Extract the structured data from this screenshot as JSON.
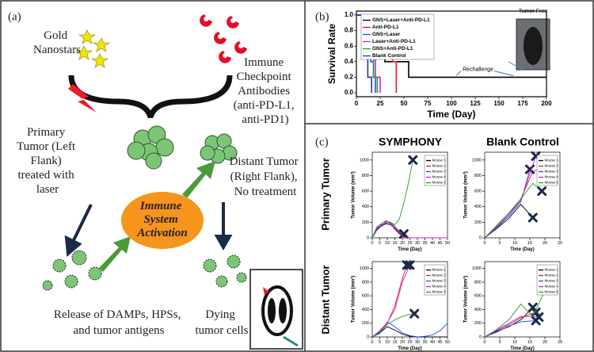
{
  "panel_labels": [
    "(a)",
    "(b)",
    "(c)"
  ],
  "diagram": {
    "gold": {
      "lines": [
        "Gold",
        "Nanostars"
      ]
    },
    "antibodies": {
      "lines": [
        "Immune",
        "Checkpoint",
        "Antibodies",
        "(anti-PD-L1,",
        "anti-PD1)"
      ]
    },
    "primary": {
      "lines": [
        "Primary",
        "Tumor (Left",
        "Flank)",
        "treated with",
        "laser"
      ]
    },
    "activation": {
      "lines": [
        "Immune",
        "System",
        "Activation"
      ]
    },
    "distant": {
      "lines": [
        "Distant Tumor",
        "(Right Flank),",
        "No treatment"
      ]
    },
    "release": {
      "lines": [
        "Release of DAMPs, HPSs,",
        "and tumor antigens"
      ]
    },
    "dying": {
      "lines": [
        "Dying",
        "tumor cells"
      ]
    }
  },
  "panel_c": {
    "columns": [
      "SYMPHONY",
      "Blank Control"
    ],
    "rows": [
      "Primary Tumor",
      "Distant Tumor"
    ]
  },
  "chart_data": [
    {
      "type": "line",
      "xlabel": "Time (Day)",
      "ylabel": "Survival Rate",
      "xlim": [
        0,
        200
      ],
      "ylim": [
        -0.05,
        1.05
      ],
      "xticks": [
        0,
        25,
        50,
        75,
        100,
        125,
        150,
        175,
        200
      ],
      "yticks": [
        {
          "value": 0,
          "label": "0.0"
        },
        {
          "value": 0.2,
          "label": "0.2"
        },
        {
          "value": 0.4,
          "label": "0.4"
        },
        {
          "value": 0.6,
          "label": "0.6"
        },
        {
          "value": 0.8,
          "label": "0.8"
        },
        {
          "value": 1,
          "label": "1.0"
        }
      ],
      "legend": "upper left",
      "annotations": [
        "Tumor Free",
        "Rechallenge"
      ],
      "series": [
        {
          "name": "GNS+Laser+Anti-PD-L1",
          "color": "#000000",
          "x": [
            0,
            20,
            20,
            25,
            25,
            30,
            30,
            55,
            55,
            200
          ],
          "values": [
            1,
            1,
            0.8,
            0.8,
            0.6,
            0.6,
            0.4,
            0.4,
            0.2,
            0.2
          ]
        },
        {
          "name": "Anti-PD-L1",
          "color": "#e31a1c",
          "x": [
            0,
            28,
            28,
            33,
            33,
            38,
            38,
            42,
            42
          ],
          "values": [
            1,
            1,
            0.8,
            0.8,
            0.6,
            0.6,
            0.4,
            0.4,
            0
          ]
        },
        {
          "name": "GNS+Laser",
          "color": "#1f4fff",
          "x": [
            0,
            12,
            12,
            15,
            15,
            18,
            18,
            20,
            20
          ],
          "values": [
            1,
            1,
            0.8,
            0.8,
            0.4,
            0.4,
            0.2,
            0.2,
            0
          ]
        },
        {
          "name": "Laser+Anti-PD-L1",
          "color": "#d020d0",
          "x": [
            0,
            15,
            15,
            20,
            20,
            25,
            25
          ],
          "values": [
            1,
            1,
            0.6,
            0.6,
            0.2,
            0.2,
            0
          ]
        },
        {
          "name": "GNS+Anti-PD-L1",
          "color": "#20a020",
          "x": [
            0,
            10,
            10,
            14,
            14,
            18,
            18,
            22,
            22
          ],
          "values": [
            1,
            1,
            0.8,
            0.8,
            0.6,
            0.6,
            0.2,
            0.2,
            0
          ]
        },
        {
          "name": "Blank Control",
          "color": "#3030a0",
          "x": [
            0,
            8,
            8,
            12,
            12,
            16,
            16
          ],
          "values": [
            1,
            1,
            0.6,
            0.6,
            0.2,
            0.2,
            0
          ]
        }
      ]
    },
    {
      "type": "line",
      "xlabel": "Time (Day)",
      "ylabel": "Tumor Volume (mm³)",
      "xlim": [
        0,
        50
      ],
      "ylim": [
        0,
        1100
      ],
      "xticks": [
        0,
        5,
        10,
        15,
        20,
        25,
        30,
        35,
        40,
        45,
        50
      ],
      "yticks": [
        0,
        200,
        400,
        600,
        800,
        1000
      ],
      "legend": "upper right",
      "end_marker": "x",
      "series": [
        {
          "name": "Mouse 1",
          "color": "#000000",
          "x": [
            0,
            3,
            6,
            9,
            12,
            15,
            18,
            21,
            24,
            27,
            30,
            35,
            40,
            45,
            50
          ],
          "values": [
            0,
            100,
            150,
            180,
            170,
            120,
            60,
            20,
            0,
            0,
            0,
            0,
            0,
            0,
            0
          ]
        },
        {
          "name": "Mouse 2",
          "color": "#e31a1c",
          "x": [
            0,
            3,
            6,
            9,
            12,
            15,
            18,
            21,
            24,
            27,
            30,
            35,
            40,
            45,
            50
          ],
          "values": [
            0,
            130,
            160,
            200,
            190,
            130,
            70,
            30,
            0,
            0,
            0,
            0,
            0,
            0,
            0
          ]
        },
        {
          "name": "Mouse 3",
          "color": "#1f4fff",
          "x": [
            0,
            3,
            6,
            9,
            12,
            15,
            18,
            21
          ],
          "values": [
            0,
            110,
            170,
            190,
            200,
            150,
            80,
            50
          ]
        },
        {
          "name": "Mouse 4",
          "color": "#d020d0",
          "x": [
            0,
            3,
            6,
            9,
            12,
            15,
            18,
            21,
            24,
            27,
            30,
            35,
            40,
            45,
            50
          ],
          "values": [
            0,
            120,
            150,
            210,
            180,
            110,
            50,
            10,
            0,
            0,
            0,
            0,
            0,
            0,
            0
          ]
        },
        {
          "name": "Mouse 5",
          "color": "#20a020",
          "x": [
            0,
            3,
            6,
            9,
            12,
            15,
            18,
            21,
            24,
            27
          ],
          "values": [
            0,
            140,
            180,
            220,
            200,
            170,
            240,
            450,
            700,
            1000
          ]
        }
      ]
    },
    {
      "type": "line",
      "xlabel": "Time (Day)",
      "ylabel": "Tumor Volume (mm³)",
      "xlim": [
        0,
        25
      ],
      "ylim": [
        0,
        1100
      ],
      "xticks": [
        0,
        5,
        10,
        15,
        20,
        25
      ],
      "yticks": [
        0,
        200,
        400,
        600,
        800,
        1000
      ],
      "legend": "upper right",
      "end_marker": "x",
      "series": [
        {
          "name": "Mouse 1",
          "color": "#000000",
          "x": [
            0,
            4,
            8,
            12,
            16
          ],
          "values": [
            0,
            120,
            250,
            430,
            260
          ]
        },
        {
          "name": "Mouse 2",
          "color": "#e31a1c",
          "x": [
            0,
            4,
            8,
            12,
            16,
            19
          ],
          "values": [
            0,
            150,
            300,
            500,
            850,
            900
          ]
        },
        {
          "name": "Mouse 3",
          "color": "#1f4fff",
          "x": [
            0,
            4,
            8,
            12,
            15
          ],
          "values": [
            0,
            130,
            280,
            460,
            880
          ]
        },
        {
          "name": "Mouse 4",
          "color": "#d020d0",
          "x": [
            0,
            4,
            8,
            12,
            17
          ],
          "values": [
            0,
            140,
            300,
            480,
            1050
          ]
        },
        {
          "name": "Mouse 5",
          "color": "#20a020",
          "x": [
            0,
            4,
            8,
            12,
            16,
            19
          ],
          "values": [
            0,
            160,
            320,
            500,
            700,
            600
          ]
        }
      ]
    },
    {
      "type": "line",
      "xlabel": "Time (Day)",
      "ylabel": "Tumor Volume (mm³)",
      "xlim": [
        0,
        50
      ],
      "ylim": [
        0,
        1100
      ],
      "xticks": [
        0,
        5,
        10,
        15,
        20,
        25,
        30,
        35,
        40,
        45,
        50
      ],
      "yticks": [
        0,
        200,
        400,
        600,
        800,
        1000
      ],
      "legend": "upper right",
      "end_marker": "x",
      "series": [
        {
          "name": "Mouse 1",
          "color": "#000000",
          "x": [
            0,
            5,
            10,
            15,
            20,
            25,
            30,
            35,
            40,
            45,
            50
          ],
          "values": [
            0,
            60,
            150,
            100,
            40,
            10,
            0,
            0,
            0,
            0,
            0
          ]
        },
        {
          "name": "Mouse 2",
          "color": "#e31a1c",
          "x": [
            0,
            5,
            10,
            15,
            20,
            23
          ],
          "values": [
            0,
            80,
            200,
            450,
            850,
            1050
          ]
        },
        {
          "name": "Mouse 3",
          "color": "#1f4fff",
          "x": [
            0,
            5,
            10,
            15,
            20,
            25,
            30,
            35,
            40,
            45,
            50
          ],
          "values": [
            0,
            50,
            220,
            150,
            60,
            20,
            0,
            10,
            30,
            90,
            200
          ]
        },
        {
          "name": "Mouse 4",
          "color": "#d020d0",
          "x": [
            0,
            5,
            10,
            15,
            20,
            25
          ],
          "values": [
            0,
            90,
            210,
            400,
            800,
            1050
          ]
        },
        {
          "name": "Mouse 5",
          "color": "#20a020",
          "x": [
            0,
            5,
            10,
            15,
            20,
            25,
            28
          ],
          "values": [
            0,
            70,
            180,
            250,
            300,
            330,
            340
          ]
        }
      ]
    },
    {
      "type": "line",
      "xlabel": "Time (Day)",
      "ylabel": "Tumor Volume (mm³)",
      "xlim": [
        0,
        25
      ],
      "ylim": [
        0,
        1100
      ],
      "xticks": [
        0,
        5,
        10,
        15,
        20,
        25
      ],
      "yticks": [
        0,
        200,
        400,
        600,
        800,
        1000
      ],
      "legend": "upper right",
      "end_marker": "x",
      "series": [
        {
          "name": "Mouse 1",
          "color": "#000000",
          "x": [
            0,
            4,
            8,
            12,
            16
          ],
          "values": [
            0,
            80,
            150,
            250,
            430
          ]
        },
        {
          "name": "Mouse 2",
          "color": "#e31a1c",
          "x": [
            0,
            4,
            8,
            12,
            17
          ],
          "values": [
            0,
            90,
            180,
            280,
            360
          ]
        },
        {
          "name": "Mouse 3",
          "color": "#1f4fff",
          "x": [
            0,
            4,
            8,
            12,
            17
          ],
          "values": [
            0,
            70,
            160,
            220,
            240
          ]
        },
        {
          "name": "Mouse 4",
          "color": "#d020d0",
          "x": [
            0,
            4,
            8,
            12,
            18
          ],
          "values": [
            0,
            100,
            200,
            300,
            290
          ]
        },
        {
          "name": "Mouse 5",
          "color": "#20a020",
          "x": [
            0,
            4,
            8,
            12,
            16,
            20
          ],
          "values": [
            0,
            110,
            250,
            480,
            300,
            680
          ]
        }
      ]
    }
  ]
}
